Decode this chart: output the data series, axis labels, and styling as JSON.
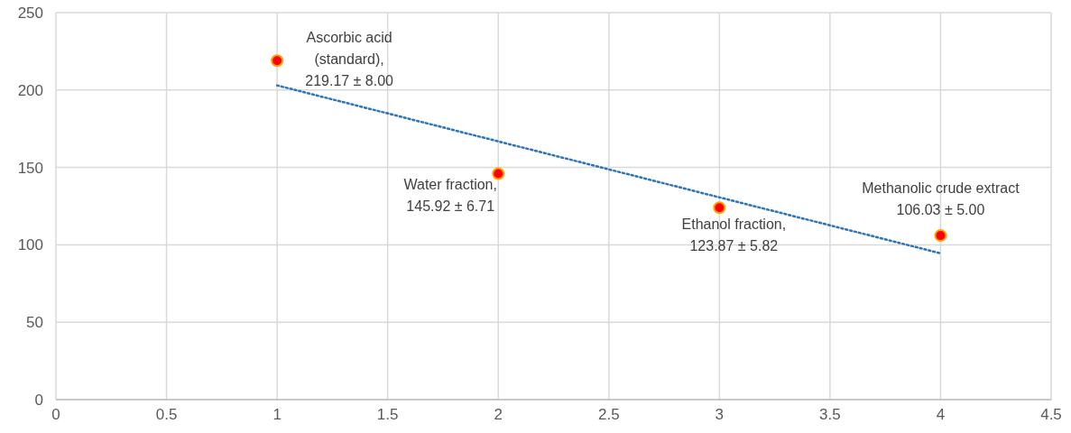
{
  "chart_data": {
    "type": "scatter",
    "x": [
      1,
      2,
      3,
      4
    ],
    "series": [
      {
        "color": "#ff0000",
        "values": [
          219,
          146,
          124,
          106
        ],
        "marker": "circle"
      },
      {
        "type": "line",
        "color": "#2e75b6",
        "x": [
          1,
          4
        ],
        "values": [
          203,
          94.5
        ],
        "line_style": "dotted"
      }
    ],
    "xlim": [
      0,
      4.5
    ],
    "xticks": [
      0,
      0.5,
      1,
      1.5,
      2,
      2.5,
      3,
      3.5,
      4,
      4.5
    ],
    "ylim": [
      0,
      250
    ],
    "yticks": [
      0,
      50,
      100,
      150,
      200,
      250
    ],
    "grid": true,
    "annotations": [
      {
        "text": "Ascorbic acid\n(standard),\n219.17 ± 8.00",
        "x": 1,
        "y": 219.17
      },
      {
        "text": "Water fraction,\n145.92 ± 6.71",
        "x": 2,
        "y": 145.92
      },
      {
        "text": "Ethanol fraction,\n123.87 ± 5.82",
        "x": 3,
        "y": 123.87
      },
      {
        "text": "Methanolic crude extract\n106.03 ± 5.00",
        "x": 4,
        "y": 106.03
      }
    ]
  }
}
